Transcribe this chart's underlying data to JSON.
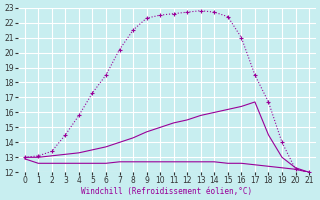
{
  "xlabel": "Windchill (Refroidissement éolien,°C)",
  "background_color": "#c8eef0",
  "grid_color": "#ffffff",
  "line_color": "#990099",
  "xlim": [
    -0.5,
    21.5
  ],
  "ylim": [
    12,
    23
  ],
  "xticks": [
    0,
    1,
    2,
    3,
    4,
    5,
    6,
    7,
    8,
    9,
    10,
    11,
    12,
    13,
    14,
    15,
    16,
    17,
    18,
    19,
    20,
    21
  ],
  "yticks": [
    12,
    13,
    14,
    15,
    16,
    17,
    18,
    19,
    20,
    21,
    22,
    23
  ],
  "curve1_x": [
    0,
    1,
    2,
    3,
    4,
    5,
    6,
    7,
    8,
    9,
    10,
    11,
    12,
    13,
    14,
    15,
    16,
    17,
    18,
    19,
    20,
    21
  ],
  "curve1_y": [
    13.0,
    13.1,
    13.4,
    14.5,
    15.8,
    17.3,
    18.5,
    20.2,
    21.5,
    22.3,
    22.5,
    22.6,
    22.7,
    22.8,
    22.7,
    22.4,
    21.0,
    18.5,
    16.7,
    14.0,
    12.2,
    12.0
  ],
  "curve2_x": [
    0,
    1,
    2,
    3,
    4,
    5,
    6,
    7,
    8,
    9,
    10,
    11,
    12,
    13,
    14,
    15,
    16,
    17,
    18,
    19,
    20,
    21
  ],
  "curve2_y": [
    13.0,
    13.0,
    13.1,
    13.2,
    13.3,
    13.5,
    13.7,
    14.0,
    14.3,
    14.7,
    15.0,
    15.3,
    15.5,
    15.8,
    16.0,
    16.2,
    16.4,
    16.7,
    14.5,
    13.0,
    12.3,
    12.0
  ],
  "curve3_x": [
    0,
    1,
    2,
    3,
    4,
    5,
    6,
    7,
    8,
    9,
    10,
    11,
    12,
    13,
    14,
    15,
    16,
    17,
    18,
    19,
    20,
    21
  ],
  "curve3_y": [
    12.9,
    12.6,
    12.6,
    12.6,
    12.6,
    12.6,
    12.6,
    12.7,
    12.7,
    12.7,
    12.7,
    12.7,
    12.7,
    12.7,
    12.7,
    12.6,
    12.6,
    12.5,
    12.4,
    12.3,
    12.2,
    12.0
  ]
}
